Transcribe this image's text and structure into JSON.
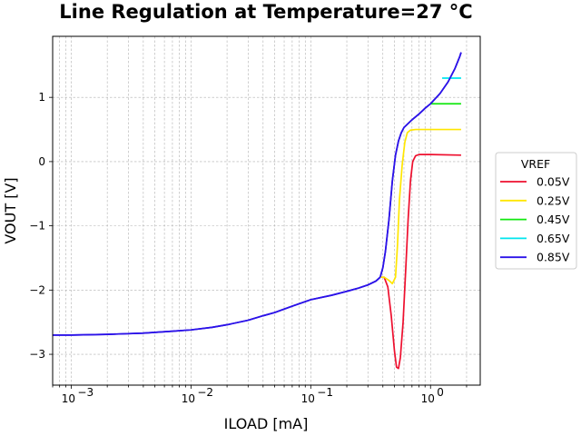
{
  "chart_data": {
    "type": "line",
    "title": "Line Regulation at Temperature=27 °C",
    "xlabel": "ILOAD [mA]",
    "ylabel": "VOUT [V]",
    "xscale": "log",
    "xlim": [
      0.0007,
      2.6
    ],
    "ylim": [
      -3.48,
      1.95
    ],
    "grid": true,
    "legend": {
      "title": "VREF",
      "placement": "outside-right"
    },
    "x_ticks": [
      {
        "value": 0.001,
        "base": "10",
        "exp": "−3"
      },
      {
        "value": 0.01,
        "base": "10",
        "exp": "−2"
      },
      {
        "value": 0.1,
        "base": "10",
        "exp": "−1"
      },
      {
        "value": 1,
        "base": "10",
        "exp": "0"
      }
    ],
    "y_ticks": [
      {
        "value": 1,
        "label": "1"
      },
      {
        "value": 0,
        "label": "0"
      },
      {
        "value": -1,
        "label": "−1"
      },
      {
        "value": -2,
        "label": "−2"
      },
      {
        "value": -3,
        "label": "−3"
      }
    ],
    "common_curve": [
      [
        0.0007,
        -2.7
      ],
      [
        0.001,
        -2.7
      ],
      [
        0.002,
        -2.69
      ],
      [
        0.004,
        -2.67
      ],
      [
        0.007,
        -2.64
      ],
      [
        0.01,
        -2.62
      ],
      [
        0.015,
        -2.58
      ],
      [
        0.02,
        -2.54
      ],
      [
        0.03,
        -2.47
      ],
      [
        0.04,
        -2.4
      ],
      [
        0.05,
        -2.35
      ],
      [
        0.07,
        -2.25
      ],
      [
        0.1,
        -2.15
      ],
      [
        0.15,
        -2.08
      ],
      [
        0.2,
        -2.02
      ],
      [
        0.25,
        -1.97
      ],
      [
        0.3,
        -1.92
      ],
      [
        0.35,
        -1.86
      ],
      [
        0.38,
        -1.8
      ]
    ],
    "upper_curve": [
      [
        0.38,
        -1.8
      ],
      [
        0.4,
        -1.65
      ],
      [
        0.42,
        -1.4
      ],
      [
        0.45,
        -0.9
      ],
      [
        0.48,
        -0.3
      ],
      [
        0.51,
        0.1
      ],
      [
        0.54,
        0.32
      ],
      [
        0.57,
        0.45
      ],
      [
        0.6,
        0.53
      ],
      [
        0.7,
        0.65
      ],
      [
        0.8,
        0.74
      ],
      [
        0.9,
        0.83
      ],
      [
        1.0,
        0.9
      ],
      [
        1.2,
        1.06
      ],
      [
        1.4,
        1.24
      ],
      [
        1.6,
        1.45
      ],
      [
        1.75,
        1.63
      ],
      [
        1.8,
        1.7
      ]
    ],
    "series": [
      {
        "name": "0.05V",
        "color": "#ee0f2e",
        "plateau": 0.1,
        "points": [
          [
            0.38,
            -1.8
          ],
          [
            0.41,
            -1.8
          ],
          [
            0.44,
            -1.95
          ],
          [
            0.47,
            -2.4
          ],
          [
            0.5,
            -2.95
          ],
          [
            0.52,
            -3.2
          ],
          [
            0.54,
            -3.22
          ],
          [
            0.56,
            -3.05
          ],
          [
            0.59,
            -2.5
          ],
          [
            0.62,
            -1.7
          ],
          [
            0.65,
            -0.9
          ],
          [
            0.68,
            -0.3
          ],
          [
            0.71,
            0.0
          ],
          [
            0.75,
            0.09
          ],
          [
            0.8,
            0.11
          ],
          [
            1.0,
            0.11
          ],
          [
            1.8,
            0.1
          ]
        ]
      },
      {
        "name": "0.25V",
        "color": "#ffe600",
        "plateau": 0.5,
        "points": [
          [
            0.38,
            -1.8
          ],
          [
            0.41,
            -1.8
          ],
          [
            0.45,
            -1.85
          ],
          [
            0.48,
            -1.9
          ],
          [
            0.51,
            -1.8
          ],
          [
            0.53,
            -1.3
          ],
          [
            0.55,
            -0.6
          ],
          [
            0.58,
            -0.05
          ],
          [
            0.61,
            0.3
          ],
          [
            0.64,
            0.45
          ],
          [
            0.68,
            0.49
          ],
          [
            0.75,
            0.5
          ],
          [
            1.8,
            0.5
          ]
        ]
      },
      {
        "name": "0.45V",
        "color": "#11e80f",
        "plateau": 0.9,
        "points": [
          [
            1.0,
            0.9
          ],
          [
            1.8,
            0.9
          ]
        ]
      },
      {
        "name": "0.65V",
        "color": "#00e5ee",
        "plateau": 1.3,
        "points": [
          [
            1.25,
            1.3
          ],
          [
            1.8,
            1.3
          ]
        ]
      },
      {
        "name": "0.85V",
        "color": "#2b12e8",
        "plateau": 1.7,
        "points": []
      }
    ]
  }
}
